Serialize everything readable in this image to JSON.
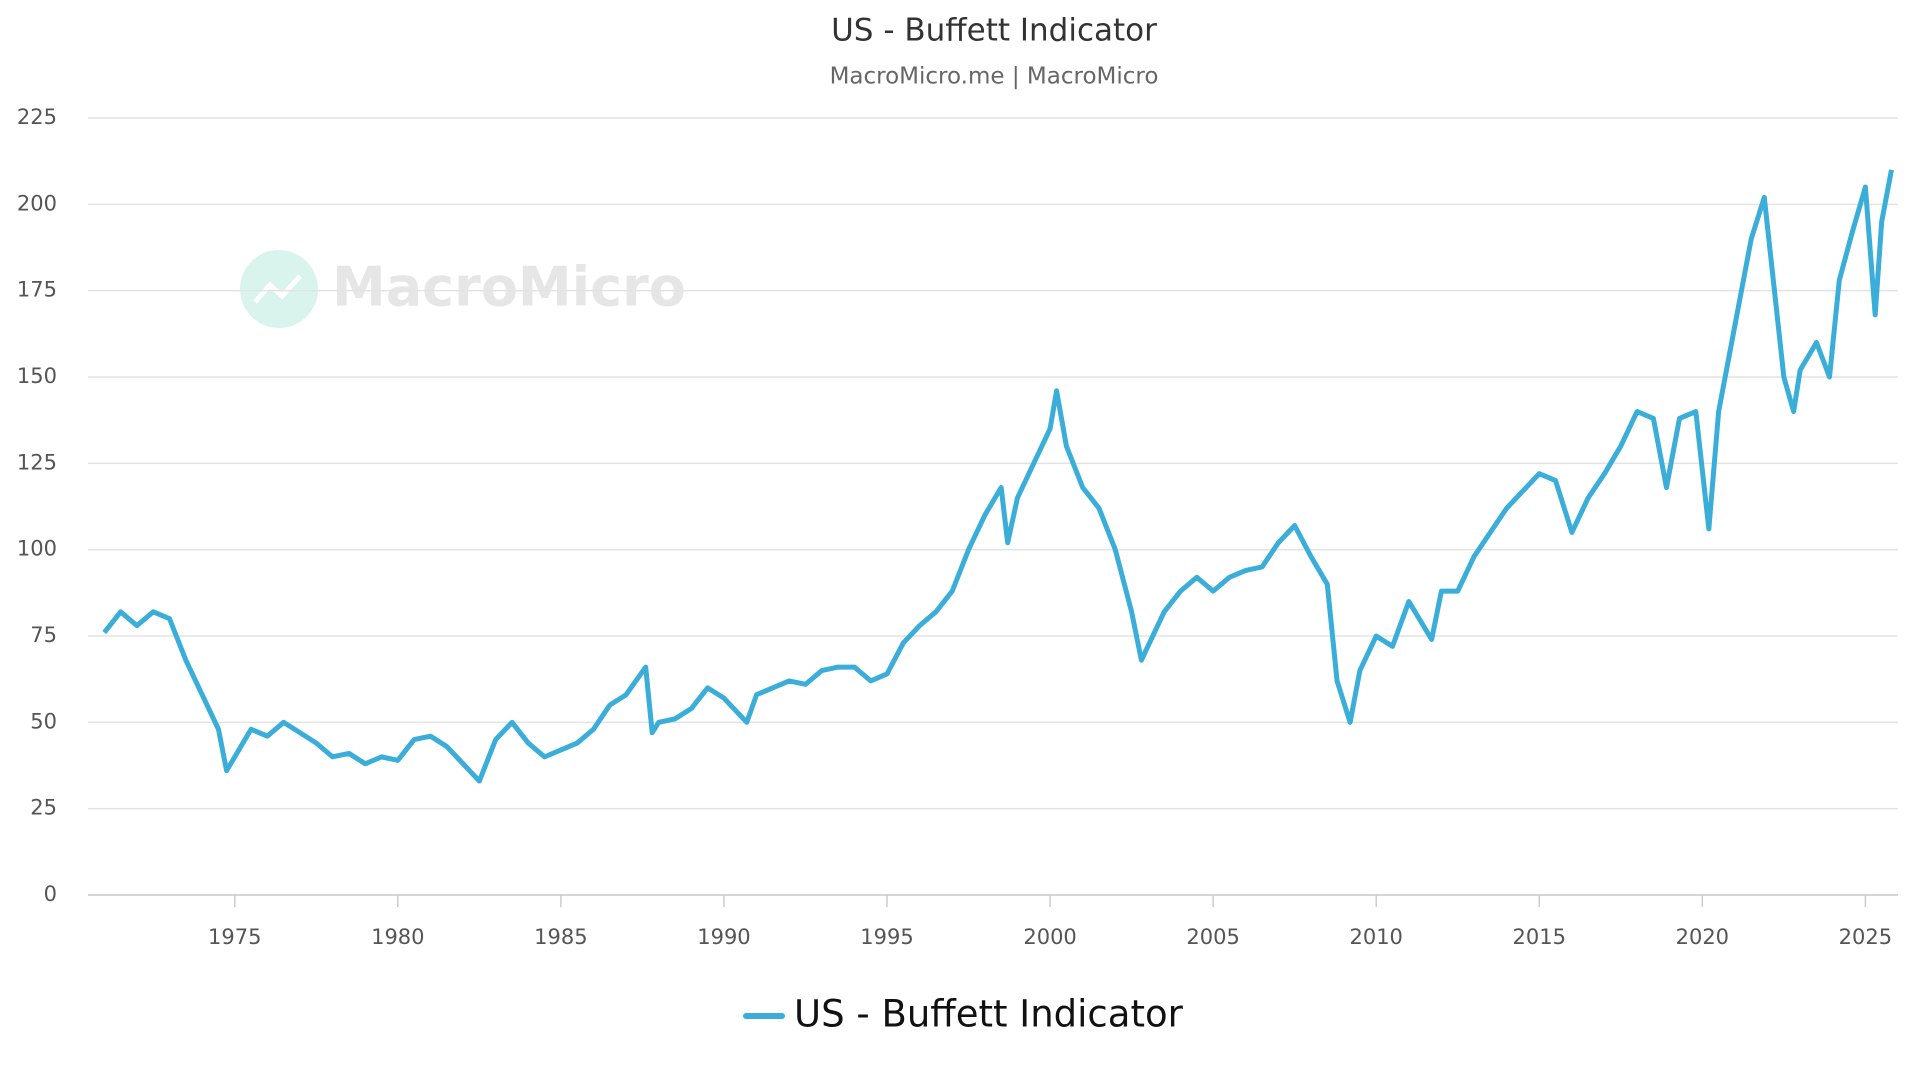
{
  "chart_data": {
    "type": "line",
    "title": "US - Buffett Indicator",
    "subtitle": "MacroMicro.me |  MacroMicro",
    "watermark": "MacroMicro",
    "x": [
      1971,
      1971.5,
      1972,
      1972.5,
      1973,
      1973.5,
      1974,
      1974.5,
      1974.75,
      1975,
      1975.5,
      1976,
      1976.5,
      1977,
      1977.5,
      1978,
      1978.5,
      1979,
      1979.5,
      1980,
      1980.5,
      1981,
      1981.5,
      1982,
      1982.5,
      1983,
      1983.5,
      1984,
      1984.5,
      1985,
      1985.5,
      1986,
      1986.5,
      1987,
      1987.6,
      1987.8,
      1988,
      1988.5,
      1989,
      1989.5,
      1990,
      1990.7,
      1991,
      1991.5,
      1992,
      1992.5,
      1993,
      1993.5,
      1994,
      1994.5,
      1995,
      1995.5,
      1996,
      1996.5,
      1997,
      1997.5,
      1998,
      1998.5,
      1998.7,
      1999,
      1999.5,
      2000,
      2000.2,
      2000.5,
      2001,
      2001.5,
      2002,
      2002.5,
      2002.8,
      2003,
      2003.5,
      2004,
      2004.5,
      2005,
      2005.5,
      2006,
      2006.5,
      2007,
      2007.5,
      2008,
      2008.5,
      2008.8,
      2009.2,
      2009.5,
      2010,
      2010.5,
      2011,
      2011.7,
      2012,
      2012.5,
      2013,
      2013.5,
      2014,
      2014.5,
      2015,
      2015.5,
      2016,
      2016.5,
      2017,
      2017.5,
      2018,
      2018.5,
      2018.9,
      2019.3,
      2019.8,
      2020.2,
      2020.5,
      2021,
      2021.5,
      2021.9,
      2022.5,
      2022.8,
      2023,
      2023.5,
      2023.9,
      2024.2,
      2024.6,
      2025,
      2025.3,
      2025.5,
      2025.8
    ],
    "series": [
      {
        "name": "US - Buffett Indicator",
        "color": "#3aaed8",
        "values": [
          76,
          82,
          78,
          82,
          80,
          68,
          58,
          48,
          36,
          40,
          48,
          46,
          50,
          47,
          44,
          40,
          41,
          38,
          40,
          39,
          45,
          46,
          43,
          38,
          33,
          45,
          50,
          44,
          40,
          42,
          44,
          48,
          55,
          58,
          66,
          47,
          50,
          51,
          54,
          60,
          57,
          50,
          58,
          60,
          62,
          61,
          65,
          66,
          66,
          62,
          64,
          73,
          78,
          82,
          88,
          100,
          110,
          118,
          102,
          115,
          125,
          135,
          146,
          130,
          118,
          112,
          100,
          82,
          68,
          72,
          82,
          88,
          92,
          88,
          92,
          94,
          95,
          102,
          107,
          98,
          90,
          62,
          50,
          65,
          75,
          72,
          85,
          74,
          88,
          88,
          98,
          105,
          112,
          117,
          122,
          120,
          105,
          115,
          122,
          130,
          140,
          138,
          118,
          138,
          140,
          106,
          140,
          165,
          190,
          202,
          150,
          140,
          152,
          160,
          150,
          178,
          192,
          205,
          168,
          195,
          210
        ]
      }
    ],
    "xlim": [
      1970.5,
      2026
    ],
    "xticks": [
      1975,
      1980,
      1985,
      1990,
      1995,
      2000,
      2005,
      2010,
      2015,
      2020,
      2025
    ],
    "ylim": [
      0,
      225
    ],
    "yticks": [
      0,
      25,
      50,
      75,
      100,
      125,
      150,
      175,
      200,
      225
    ],
    "grid": true
  }
}
